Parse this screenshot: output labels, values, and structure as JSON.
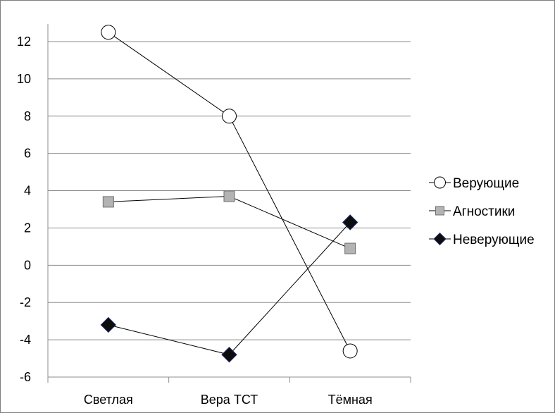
{
  "chart_data": {
    "type": "line",
    "title": "",
    "xlabel": "",
    "ylabel": "",
    "categories": [
      "Светлая",
      "Вера ТСТ",
      "Тёмная"
    ],
    "ylim": [
      -6,
      12
    ],
    "yticks": [
      12,
      10,
      8,
      6,
      4,
      2,
      0,
      -2,
      -4,
      -6
    ],
    "grid": true,
    "legend_position": "right",
    "series": [
      {
        "name": "Верующие",
        "marker": "circle",
        "values": [
          12.5,
          8.0,
          -4.6
        ],
        "fill": "#ffffff"
      },
      {
        "name": "Агностики",
        "marker": "square",
        "values": [
          3.4,
          3.7,
          0.9
        ],
        "fill": "#b3b3b3"
      },
      {
        "name": "Неверующие",
        "marker": "diamond",
        "values": [
          -3.2,
          -4.8,
          2.3
        ],
        "fill": "#0d0d0d"
      }
    ]
  }
}
